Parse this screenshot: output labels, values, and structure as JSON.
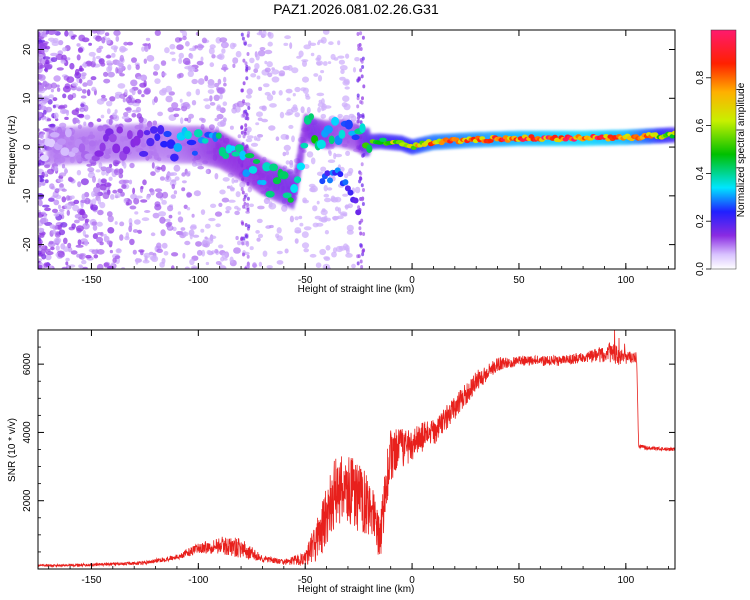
{
  "title": "PAZ1.2026.081.02.26.G31",
  "chart_data": [
    {
      "type": "heatmap",
      "xlabel": "Height of straight line (km)",
      "ylabel": "Frequency (Hz)",
      "xlim": [
        -175,
        123
      ],
      "ylim": [
        -25,
        24
      ],
      "xticks": [
        -150,
        -100,
        -50,
        0,
        50,
        100
      ],
      "yticks": [
        -20,
        -10,
        0,
        10,
        20
      ],
      "colorbar": {
        "label": "Normalized spectral amplitude",
        "range": [
          0,
          1
        ],
        "ticks": [
          0.0,
          0.2,
          0.4,
          0.6,
          0.8
        ],
        "tick_labels": [
          "0.0",
          "0.2",
          "0.4",
          "0.6",
          "0.8"
        ]
      },
      "ridge": {
        "x": [
          -175,
          -150,
          -125,
          -110,
          -100,
          -90,
          -80,
          -70,
          -60,
          -55,
          -50,
          -45,
          -40,
          -35,
          -30,
          -26,
          -22,
          -15,
          -5,
          0,
          10,
          30,
          50,
          80,
          100,
          123
        ],
        "freq": [
          0,
          0.5,
          1,
          0.5,
          0.5,
          -0.5,
          -3,
          -6,
          -8,
          -9,
          4,
          3,
          2.5,
          3,
          2.5,
          2,
          1,
          1.2,
          0.8,
          0,
          1,
          1.5,
          1.8,
          1.8,
          2,
          2.5
        ],
        "amplitude": [
          0.05,
          0.12,
          0.2,
          0.3,
          0.35,
          0.4,
          0.4,
          0.4,
          0.45,
          0.45,
          0.4,
          0.45,
          0.4,
          0.35,
          0.35,
          0.35,
          0.5,
          0.6,
          0.65,
          0.7,
          0.8,
          0.85,
          0.9,
          0.95,
          0.9,
          0.6
        ]
      },
      "secondary_branch": {
        "x": [
          -42,
          -35,
          -30,
          -25
        ],
        "freq": [
          -7,
          -5,
          -8,
          -13
        ]
      }
    },
    {
      "type": "line",
      "xlabel": "Height of straight line (km)",
      "ylabel": "SNR (10 * v/v)",
      "xlim": [
        -175,
        123
      ],
      "ylim": [
        0,
        7000
      ],
      "xticks": [
        -150,
        -100,
        -50,
        0,
        50,
        100
      ],
      "yticks": [
        2000,
        4000,
        6000
      ],
      "color": "#e8201c",
      "series": [
        {
          "name": "SNR",
          "x": [
            -175,
            -150,
            -125,
            -110,
            -100,
            -90,
            -80,
            -70,
            -60,
            -50,
            -45,
            -40,
            -35,
            -30,
            -25,
            -20,
            -15,
            -12,
            -10,
            -5,
            0,
            10,
            20,
            30,
            40,
            50,
            60,
            70,
            80,
            90,
            95,
            100,
            105,
            106,
            110,
            123
          ],
          "y": [
            100,
            120,
            180,
            350,
            600,
            700,
            600,
            300,
            200,
            300,
            800,
            1500,
            2400,
            2300,
            2100,
            1900,
            800,
            2600,
            3300,
            3500,
            3700,
            4000,
            4700,
            5500,
            6000,
            6100,
            6100,
            6100,
            6200,
            6300,
            6350,
            6200,
            6200,
            3600,
            3550,
            3500
          ],
          "noise": [
            30,
            40,
            50,
            80,
            150,
            250,
            300,
            100,
            80,
            200,
            600,
            900,
            1100,
            1100,
            1000,
            900,
            600,
            900,
            800,
            600,
            500,
            400,
            350,
            300,
            200,
            150,
            150,
            150,
            150,
            250,
            400,
            200,
            150,
            60,
            50,
            50
          ]
        }
      ]
    }
  ]
}
